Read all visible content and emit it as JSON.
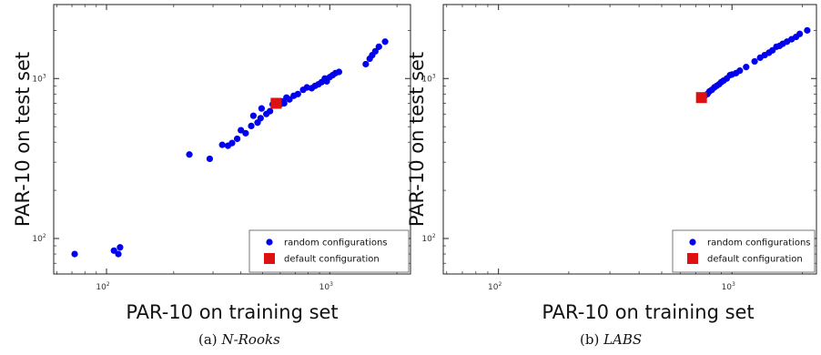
{
  "chart_data": [
    {
      "type": "scatter",
      "caption_prefix": "(a)",
      "caption_name": "N-Rooks",
      "xlabel": "PAR-10 on training set",
      "ylabel": "PAR-10 on test set",
      "log_x": true,
      "log_y": true,
      "xlim": [
        58,
        2300
      ],
      "ylim": [
        60,
        2900
      ],
      "x_ticks": [
        {
          "value": 100,
          "label": "10",
          "exp": "2"
        },
        {
          "value": 1000,
          "label": "10",
          "exp": "3"
        }
      ],
      "y_ticks": [
        {
          "value": 100,
          "label": "10",
          "exp": "2"
        },
        {
          "value": 1000,
          "label": "10",
          "exp": "3"
        }
      ],
      "grid": false,
      "legend_position": "bottom-right",
      "series": [
        {
          "name": "random configurations",
          "marker": "circle",
          "color": "#0000ee",
          "points": [
            [
              72,
              80
            ],
            [
              108,
              84
            ],
            [
              113,
              80
            ],
            [
              115,
              88
            ],
            [
              235,
              335
            ],
            [
              290,
              315
            ],
            [
              330,
              385
            ],
            [
              350,
              380
            ],
            [
              365,
              395
            ],
            [
              385,
              420
            ],
            [
              400,
              475
            ],
            [
              420,
              455
            ],
            [
              445,
              505
            ],
            [
              455,
              585
            ],
            [
              475,
              530
            ],
            [
              490,
              565
            ],
            [
              495,
              650
            ],
            [
              520,
              600
            ],
            [
              540,
              625
            ],
            [
              555,
              690
            ],
            [
              600,
              690
            ],
            [
              615,
              720
            ],
            [
              625,
              700
            ],
            [
              640,
              760
            ],
            [
              660,
              740
            ],
            [
              690,
              780
            ],
            [
              720,
              800
            ],
            [
              760,
              850
            ],
            [
              790,
              880
            ],
            [
              830,
              870
            ],
            [
              860,
              900
            ],
            [
              890,
              920
            ],
            [
              920,
              950
            ],
            [
              950,
              1000
            ],
            [
              970,
              960
            ],
            [
              1000,
              1020
            ],
            [
              1030,
              1050
            ],
            [
              1060,
              1080
            ],
            [
              1100,
              1100
            ],
            [
              1450,
              1230
            ],
            [
              1510,
              1330
            ],
            [
              1550,
              1400
            ],
            [
              1600,
              1480
            ],
            [
              1660,
              1580
            ],
            [
              1770,
              1700
            ]
          ]
        },
        {
          "name": "default configuration",
          "marker": "square",
          "color": "#dd1111",
          "points": [
            [
              575,
              700
            ]
          ]
        }
      ]
    },
    {
      "type": "scatter",
      "caption_prefix": "(b)",
      "caption_name": "LABS",
      "xlabel": "PAR-10 on training set",
      "ylabel": "PAR-10 on test set",
      "log_x": true,
      "log_y": true,
      "xlim": [
        58,
        2300
      ],
      "ylim": [
        60,
        2900
      ],
      "x_ticks": [
        {
          "value": 100,
          "label": "10",
          "exp": "2"
        },
        {
          "value": 1000,
          "label": "10",
          "exp": "3"
        }
      ],
      "y_ticks": [
        {
          "value": 100,
          "label": "10",
          "exp": "2"
        },
        {
          "value": 1000,
          "label": "10",
          "exp": "3"
        }
      ],
      "grid": false,
      "legend_position": "bottom-right",
      "series": [
        {
          "name": "random configurations",
          "marker": "circle",
          "color": "#0000ee",
          "points": [
            [
              765,
              780
            ],
            [
              785,
              800
            ],
            [
              800,
              830
            ],
            [
              820,
              850
            ],
            [
              840,
              880
            ],
            [
              860,
              900
            ],
            [
              880,
              920
            ],
            [
              900,
              950
            ],
            [
              920,
              970
            ],
            [
              950,
              1000
            ],
            [
              980,
              1050
            ],
            [
              1000,
              1060
            ],
            [
              1040,
              1080
            ],
            [
              1080,
              1120
            ],
            [
              1150,
              1180
            ],
            [
              1250,
              1280
            ],
            [
              1320,
              1350
            ],
            [
              1380,
              1400
            ],
            [
              1440,
              1450
            ],
            [
              1490,
              1500
            ],
            [
              1550,
              1580
            ],
            [
              1600,
              1600
            ],
            [
              1650,
              1650
            ],
            [
              1720,
              1700
            ],
            [
              1800,
              1760
            ],
            [
              1880,
              1820
            ],
            [
              1950,
              1900
            ],
            [
              2100,
              2000
            ]
          ]
        },
        {
          "name": "default configuration",
          "marker": "square",
          "color": "#dd1111",
          "points": [
            [
              740,
              760
            ]
          ]
        }
      ]
    }
  ]
}
